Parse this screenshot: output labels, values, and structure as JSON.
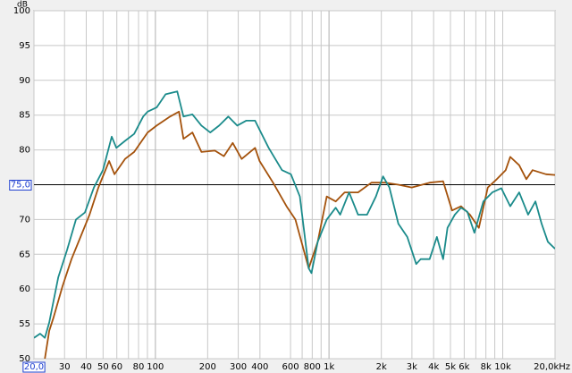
{
  "chart_data": {
    "type": "line",
    "y_unit": "dB",
    "xscale": "log",
    "xlim": [
      20,
      20000
    ],
    "ylim": [
      50,
      100
    ],
    "xticks": [
      {
        "value": 20,
        "label": "20,0"
      },
      30,
      40,
      50,
      60,
      80,
      100,
      200,
      300,
      400,
      600,
      800,
      {
        "value": 1000,
        "label": "1k"
      },
      {
        "value": 2000,
        "label": "2k"
      },
      {
        "value": 3000,
        "label": "3k"
      },
      {
        "value": 4000,
        "label": "4k"
      },
      {
        "value": 5000,
        "label": "5k"
      },
      {
        "value": 6000,
        "label": "6k"
      },
      {
        "value": 8000,
        "label": "8k"
      },
      {
        "value": 10000,
        "label": "10k"
      },
      {
        "value": 20000,
        "label": "20,0kHz"
      }
    ],
    "xminor": [
      70,
      90,
      700,
      900,
      7000,
      9000
    ],
    "xmajor": [
      100,
      1000,
      10000
    ],
    "yticks": [
      50,
      55,
      60,
      65,
      70,
      {
        "value": 75,
        "label": "75,0"
      },
      80,
      85,
      90,
      95,
      100
    ],
    "reference_line": 75,
    "grid": true,
    "series": [
      {
        "color": "#1b8b8b",
        "x": [
          20,
          21.7,
          23.1,
          24.5,
          27.6,
          31.0,
          34.9,
          39.3,
          44.3,
          49.9,
          56.1,
          59.6,
          66.9,
          75.5,
          85.1,
          90.3,
          101.7,
          114.5,
          133.7,
          145.2,
          163.5,
          184.2,
          207,
          233,
          263,
          296,
          333,
          375,
          398,
          449,
          536,
          603,
          679,
          764,
          792,
          861,
          970,
          1092,
          1159,
          1304,
          1469,
          1655,
          1862,
          2047,
          2225,
          2506,
          2821,
          3176,
          3371,
          3794,
          4177,
          4539,
          4811,
          5297,
          5757,
          6254,
          6871,
          7737,
          8710,
          9817,
          11040,
          12440,
          14000,
          15420,
          16750,
          18200,
          20000
        ],
        "values": [
          53,
          53.6,
          53,
          55.2,
          61.7,
          65.6,
          70,
          71,
          74.6,
          77.1,
          81.9,
          80.3,
          81.3,
          82.3,
          84.8,
          85.5,
          86.1,
          88,
          88.4,
          84.8,
          85.1,
          83.5,
          82.5,
          83.5,
          84.8,
          83.5,
          84.2,
          84.2,
          82.9,
          80.3,
          77.1,
          76.5,
          73.3,
          63,
          62.3,
          66.8,
          70,
          71.7,
          70.7,
          73.9,
          70.7,
          70.7,
          73.3,
          76.2,
          74.6,
          69.4,
          67.5,
          63.6,
          64.3,
          64.3,
          67.5,
          64.3,
          68.8,
          70.7,
          71.7,
          71.1,
          68.1,
          72.6,
          73.9,
          74.5,
          71.9,
          73.9,
          70.7,
          72.6,
          69.4,
          66.8,
          65.8
        ]
      },
      {
        "color": "#a4520c",
        "x": [
          23.1,
          24.5,
          26.0,
          29.2,
          32.9,
          37.1,
          41.8,
          47.0,
          54.2,
          58.2,
          66.9,
          75.5,
          90.3,
          101.7,
          121.6,
          136.8,
          145.2,
          163.5,
          184.2,
          220,
          248,
          279,
          314,
          375,
          398,
          476,
          569,
          640,
          764,
          861,
          970,
          1092,
          1230,
          1469,
          1755,
          2098,
          2506,
          2993,
          3794,
          4539,
          5105,
          5757,
          6476,
          7291,
          8206,
          9247,
          10400,
          11040,
          12440,
          13680,
          14860,
          17750,
          20000
        ],
        "values": [
          50,
          54,
          56,
          60.4,
          64.3,
          67.5,
          70.7,
          74.6,
          78.4,
          76.5,
          78.7,
          79.7,
          82.5,
          83.5,
          84.8,
          85.5,
          81.6,
          82.5,
          79.7,
          79.9,
          79.1,
          81,
          78.7,
          80.3,
          78.4,
          75.3,
          71.9,
          70,
          63,
          66.8,
          73.3,
          72.6,
          73.9,
          73.9,
          75.3,
          75.3,
          75,
          74.6,
          75.3,
          75.5,
          71.3,
          71.9,
          70.7,
          68.8,
          74.6,
          75.8,
          77.1,
          79,
          77.8,
          75.8,
          77.1,
          76.5,
          76.4
        ]
      }
    ]
  }
}
